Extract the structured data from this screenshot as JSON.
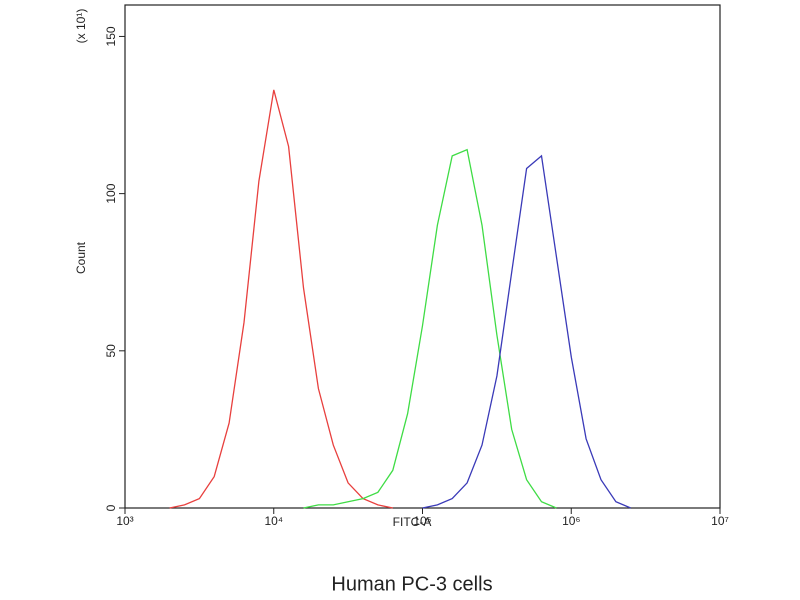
{
  "chart_data": {
    "type": "line",
    "title": "Human PC-3 cells",
    "xlabel": "FITC-A",
    "ylabel": "Count",
    "y_multiplier": "(x 10¹)",
    "xscale": "log",
    "xlim": [
      1000,
      10000000
    ],
    "xticks": [
      {
        "value": 1000,
        "label": "10³"
      },
      {
        "value": 10000,
        "label": "10⁴"
      },
      {
        "value": 100000,
        "label": "10⁵"
      },
      {
        "value": 1000000,
        "label": "10⁶"
      },
      {
        "value": 10000000,
        "label": "10⁷"
      }
    ],
    "ylim": [
      0,
      160
    ],
    "yticks": [
      0,
      50,
      100,
      150
    ],
    "grid": false,
    "x": [
      1995,
      2512,
      3162,
      3981,
      5012,
      6310,
      7943,
      10000,
      12589,
      15849,
      19953,
      25119,
      31623,
      39811,
      50119,
      63096,
      79433,
      100000,
      125893,
      158489,
      199526,
      251189,
      316228,
      398107,
      501187,
      630957,
      794328,
      1000000,
      1258925,
      1584893,
      1995262,
      2511886
    ],
    "series": [
      {
        "color": "#e8403e",
        "values": [
          0,
          1,
          3,
          10,
          27,
          59,
          104,
          133,
          115,
          70,
          38,
          20,
          8,
          3,
          1,
          0,
          null,
          null,
          null,
          null,
          null,
          null,
          null,
          null,
          null,
          null,
          null,
          null,
          null,
          null,
          null,
          null
        ]
      },
      {
        "color": "#3fdc45",
        "values": [
          null,
          null,
          null,
          null,
          null,
          null,
          null,
          null,
          null,
          0,
          1,
          1,
          2,
          3,
          5,
          12,
          30,
          58,
          90,
          112,
          114,
          90,
          55,
          25,
          9,
          2,
          0,
          null,
          null,
          null,
          null,
          null
        ]
      },
      {
        "color": "#3a3ab8",
        "values": [
          null,
          null,
          null,
          null,
          null,
          null,
          null,
          null,
          null,
          null,
          null,
          null,
          null,
          null,
          null,
          null,
          null,
          0,
          1,
          3,
          8,
          20,
          42,
          75,
          108,
          112,
          80,
          48,
          22,
          9,
          2,
          0
        ]
      }
    ]
  }
}
